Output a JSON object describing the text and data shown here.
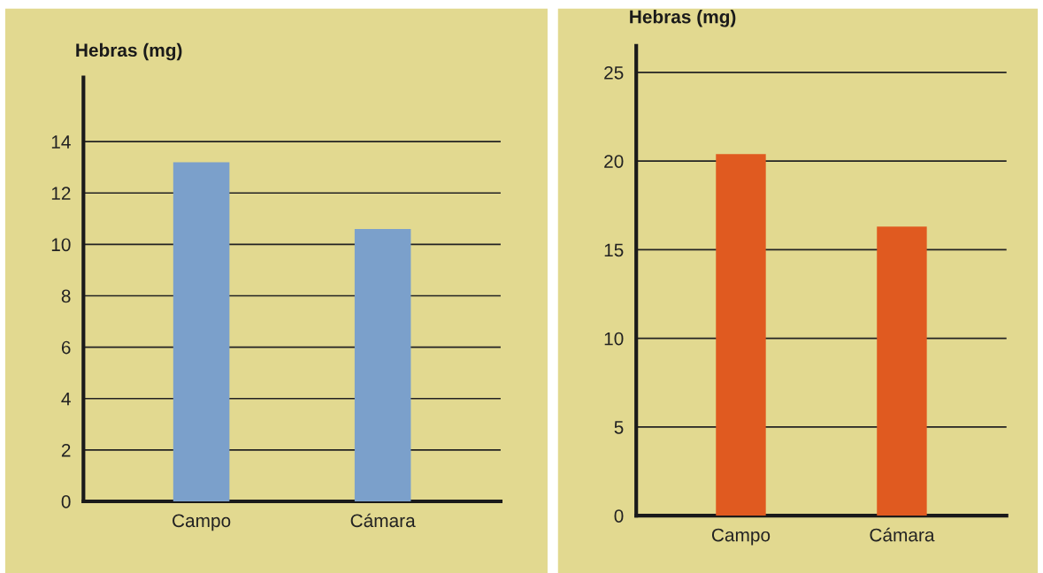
{
  "chart_data": [
    {
      "type": "bar",
      "ylabel": "Hebras (mg)",
      "categories": [
        "Campo",
        "Cámara"
      ],
      "values": [
        13.2,
        10.6
      ],
      "color": "#7ba0cb",
      "ylim": [
        0,
        16.5
      ],
      "yticks": [
        0,
        2,
        4,
        6,
        8,
        10,
        12,
        14
      ],
      "grid": "y"
    },
    {
      "type": "bar",
      "ylabel": "Hebras (mg)",
      "categories": [
        "Campo",
        "Cámara"
      ],
      "values": [
        20.4,
        16.3
      ],
      "color": "#e05a20",
      "ylim": [
        0,
        26.5
      ],
      "yticks": [
        0,
        5,
        10,
        15,
        20,
        25
      ],
      "grid": "y"
    }
  ]
}
